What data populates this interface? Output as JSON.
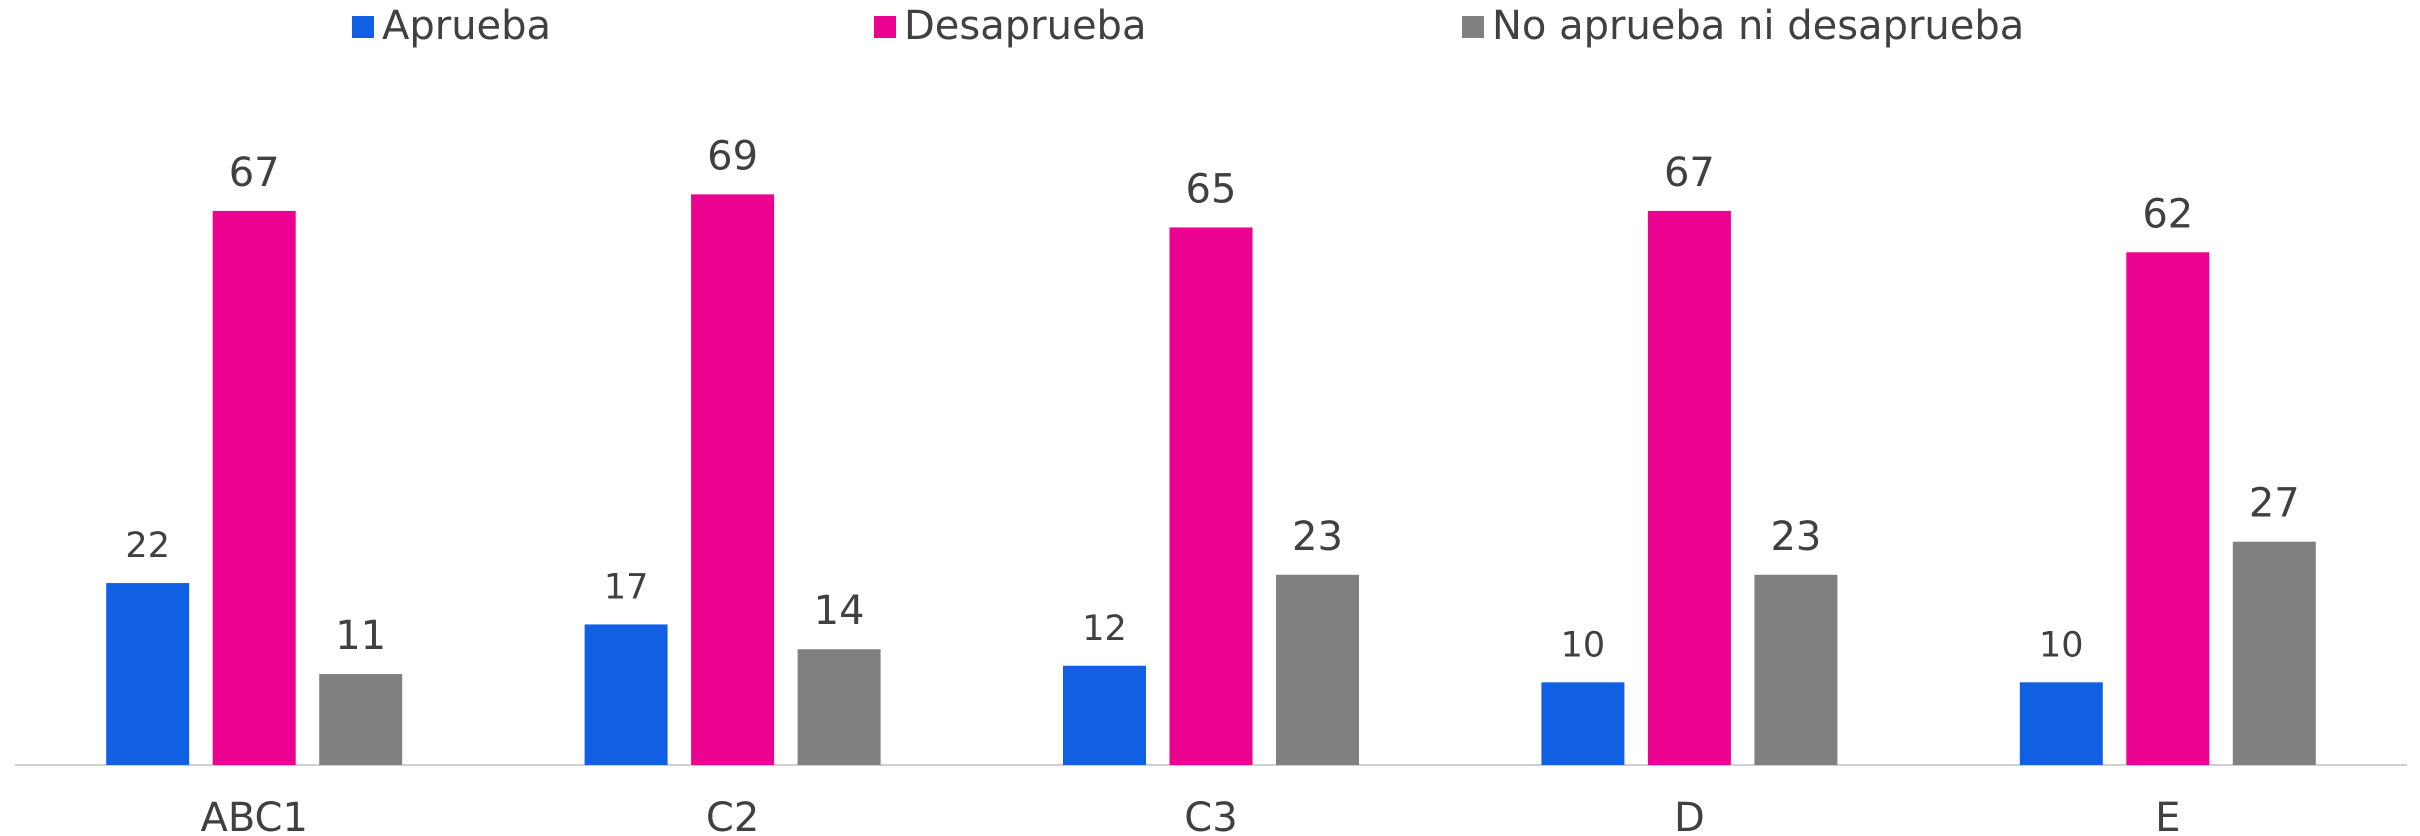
{
  "chart_data": {
    "type": "bar",
    "categories": [
      "ABC1",
      "C2",
      "C3",
      "D",
      "E"
    ],
    "series": [
      {
        "name": "Aprueba",
        "color": "#1160e3",
        "values": [
          22,
          17,
          12,
          10,
          10
        ]
      },
      {
        "name": "Desaprueba",
        "color": "#ec0290",
        "values": [
          67,
          69,
          65,
          67,
          62
        ]
      },
      {
        "name": "No aprueba ni desaprueba",
        "color": "#808080",
        "values": [
          11,
          14,
          23,
          23,
          27
        ]
      }
    ],
    "ylim": [
      0,
      80
    ]
  }
}
